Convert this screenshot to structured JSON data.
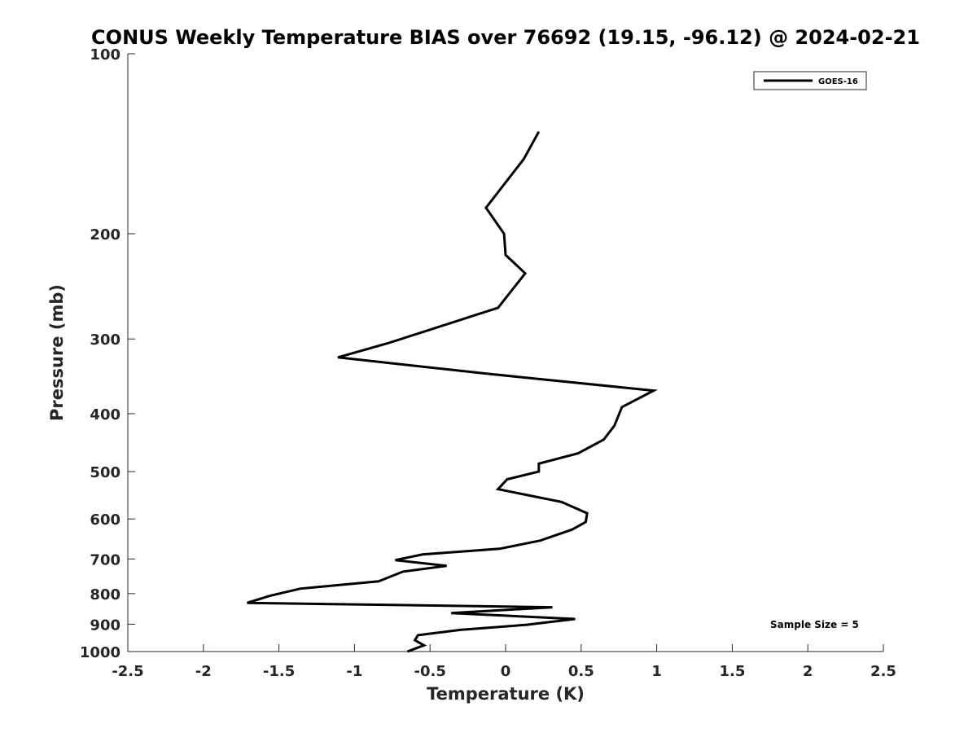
{
  "chart_data": {
    "type": "line",
    "title": "CONUS Weekly Temperature BIAS over 76692 (19.15, -96.12) @ 2024-02-21",
    "xlabel": "Temperature (K)",
    "ylabel": "Pressure (mb)",
    "xlim": [
      -2.5,
      2.5
    ],
    "ylim": [
      100,
      1000
    ],
    "y_scale": "log",
    "y_direction": "reversed",
    "x_ticks": [
      -2.5,
      -2,
      -1.5,
      -1,
      -0.5,
      0,
      0.5,
      1,
      1.5,
      2,
      2.5
    ],
    "x_tick_labels": [
      "-2.5",
      "-2",
      "-1.5",
      "-1",
      "-0.5",
      "0",
      "0.5",
      "1",
      "1.5",
      "2",
      "2.5"
    ],
    "y_ticks": [
      100,
      200,
      300,
      400,
      500,
      600,
      700,
      800,
      900,
      1000
    ],
    "y_tick_labels": [
      "100",
      "200",
      "300",
      "400",
      "500",
      "600",
      "700",
      "800",
      "900",
      "1000"
    ],
    "grid": false,
    "legend_position": "top-right",
    "annotation": "Sample Size = 5",
    "series": [
      {
        "name": "GOES-16",
        "color": "#000000",
        "points": [
          [
            0.22,
            135
          ],
          [
            0.12,
            150
          ],
          [
            -0.13,
            181
          ],
          [
            -0.01,
            200
          ],
          [
            0.0,
            217
          ],
          [
            0.13,
            233
          ],
          [
            -0.05,
            266
          ],
          [
            -0.78,
            305
          ],
          [
            -1.11,
            322
          ],
          [
            -0.12,
            343
          ],
          [
            0.98,
            366
          ],
          [
            0.77,
            390
          ],
          [
            0.72,
            419
          ],
          [
            0.65,
            442
          ],
          [
            0.48,
            466
          ],
          [
            0.22,
            485
          ],
          [
            0.22,
            500
          ],
          [
            0.01,
            515
          ],
          [
            -0.05,
            535
          ],
          [
            0.37,
            562
          ],
          [
            0.54,
            587
          ],
          [
            0.53,
            607
          ],
          [
            0.44,
            625
          ],
          [
            0.23,
            652
          ],
          [
            -0.04,
            673
          ],
          [
            -0.55,
            688
          ],
          [
            -0.73,
            703
          ],
          [
            -0.39,
            719
          ],
          [
            -0.68,
            735
          ],
          [
            -0.84,
            763
          ],
          [
            -1.36,
            785
          ],
          [
            -1.56,
            807
          ],
          [
            -1.71,
            829
          ],
          [
            0.31,
            843
          ],
          [
            -0.36,
            862
          ],
          [
            0.46,
            882
          ],
          [
            0.14,
            902
          ],
          [
            -0.3,
            920
          ],
          [
            -0.58,
            939
          ],
          [
            -0.6,
            957
          ],
          [
            -0.54,
            976
          ],
          [
            -0.65,
            1000
          ]
        ]
      }
    ]
  }
}
